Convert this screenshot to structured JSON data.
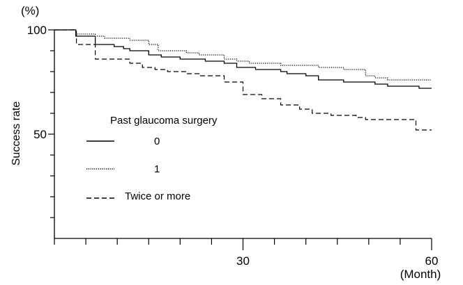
{
  "chart_data": {
    "type": "line",
    "subtype": "kaplan-meier step curve",
    "title": "",
    "ylabel": "Success rate",
    "yunit": "(%)",
    "xunit": "(Month)",
    "xlim": [
      0,
      60
    ],
    "ylim": [
      0,
      100
    ],
    "xticks": [
      30,
      60
    ],
    "xticks_labels": [
      "30",
      "60"
    ],
    "xminor_step": 5,
    "yticks": [
      50,
      100
    ],
    "yticks_labels": [
      "50",
      "100"
    ],
    "yminor_step": 10,
    "grid": false,
    "legend": {
      "title": "Past glaucoma surgery",
      "placement": "center-left",
      "entries": [
        "0",
        "1",
        "Twice or more"
      ]
    },
    "series": [
      {
        "name": "0",
        "style": "solid",
        "x": [
          0,
          2.9,
          3.4,
          6.5,
          9.5,
          11,
          12,
          15,
          17,
          20,
          24,
          27,
          29,
          32,
          36,
          37,
          40,
          42,
          46,
          47,
          51,
          53,
          56,
          58,
          60
        ],
        "y": [
          100,
          100,
          97,
          93,
          92,
          91,
          90,
          88,
          87,
          86,
          85,
          84,
          82,
          81,
          80,
          79,
          78,
          76,
          75,
          75,
          74,
          73,
          73,
          72,
          72
        ]
      },
      {
        "name": "1",
        "style": "dotted",
        "x": [
          0,
          3.4,
          6.5,
          8,
          12,
          15,
          16.5,
          21,
          23,
          27,
          29,
          31,
          36,
          42,
          46,
          48,
          49.5,
          51,
          53,
          60
        ],
        "y": [
          100,
          98,
          97,
          96,
          95,
          93,
          90,
          89,
          88,
          86,
          85,
          84,
          83,
          82,
          81,
          81,
          78,
          77,
          76,
          76
        ]
      },
      {
        "name": "Twice or more",
        "style": "dashed",
        "x": [
          0,
          2.9,
          3.5,
          6.5,
          9.5,
          12,
          14,
          16,
          18,
          21,
          23,
          27,
          30,
          33,
          36,
          39,
          41,
          44,
          46,
          48,
          49.5,
          57.5,
          60
        ],
        "y": [
          100,
          100,
          93,
          86,
          86,
          84,
          82,
          81,
          80,
          79,
          78,
          75,
          69,
          67,
          64,
          62,
          60,
          59,
          59,
          58,
          57,
          52,
          52
        ]
      }
    ]
  }
}
